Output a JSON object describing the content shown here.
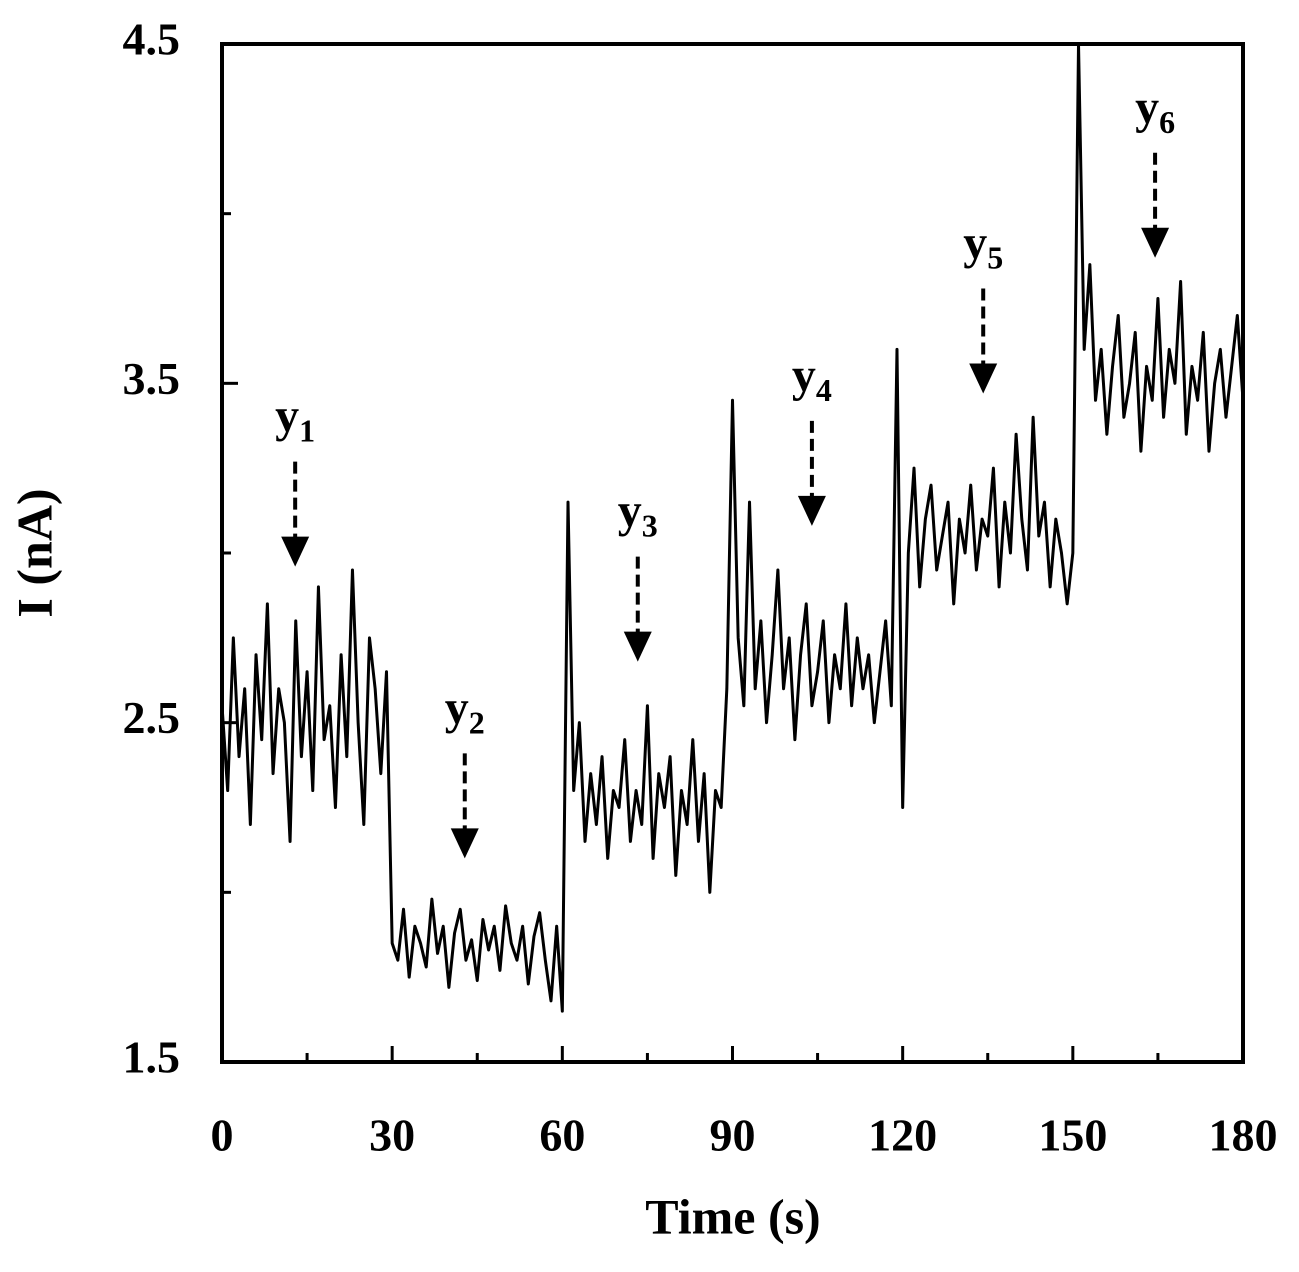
{
  "chart_data": {
    "type": "line",
    "xlabel": "Time (s)",
    "ylabel": "I (nA)",
    "xlim": [
      0,
      180
    ],
    "xticks": [
      0,
      30,
      60,
      90,
      120,
      150,
      180
    ],
    "xminorticks": [
      15,
      45,
      75,
      105,
      135,
      165
    ],
    "ylim": [
      1.5,
      4.5
    ],
    "yticks": [
      1.5,
      2.5,
      3.5,
      4.5
    ],
    "yminorticks": [
      2,
      3,
      4
    ],
    "color": "#000000",
    "x": [
      0,
      1,
      2,
      3,
      4,
      5,
      6,
      7,
      8,
      9,
      10,
      11,
      12,
      13,
      14,
      15,
      16,
      17,
      18,
      19,
      20,
      21,
      22,
      23,
      24,
      25,
      26,
      27,
      28,
      29,
      30,
      31,
      32,
      33,
      34,
      35,
      36,
      37,
      38,
      39,
      40,
      41,
      42,
      43,
      44,
      45,
      46,
      47,
      48,
      49,
      50,
      51,
      52,
      53,
      54,
      55,
      56,
      57,
      58,
      59,
      60,
      61,
      62,
      63,
      64,
      65,
      66,
      67,
      68,
      69,
      70,
      71,
      72,
      73,
      74,
      75,
      76,
      77,
      78,
      79,
      80,
      81,
      82,
      83,
      84,
      85,
      86,
      87,
      88,
      89,
      90,
      91,
      92,
      93,
      94,
      95,
      96,
      97,
      98,
      99,
      100,
      101,
      102,
      103,
      104,
      105,
      106,
      107,
      108,
      109,
      110,
      111,
      112,
      113,
      114,
      115,
      116,
      117,
      118,
      119,
      120,
      121,
      122,
      123,
      124,
      125,
      126,
      127,
      128,
      129,
      130,
      131,
      132,
      133,
      134,
      135,
      136,
      137,
      138,
      139,
      140,
      141,
      142,
      143,
      144,
      145,
      146,
      147,
      148,
      149,
      150,
      151,
      152,
      153,
      154,
      155,
      156,
      157,
      158,
      159,
      160,
      161,
      162,
      163,
      164,
      165,
      166,
      167,
      168,
      169,
      170,
      171,
      172,
      173,
      174,
      175,
      176,
      177,
      178,
      179,
      180
    ],
    "values": [
      2.55,
      2.3,
      2.75,
      2.4,
      2.6,
      2.2,
      2.7,
      2.45,
      2.85,
      2.35,
      2.6,
      2.5,
      2.15,
      2.8,
      2.4,
      2.65,
      2.3,
      2.9,
      2.45,
      2.55,
      2.25,
      2.7,
      2.4,
      2.95,
      2.5,
      2.2,
      2.75,
      2.6,
      2.35,
      2.65,
      1.85,
      1.8,
      1.95,
      1.75,
      1.9,
      1.85,
      1.78,
      1.98,
      1.82,
      1.9,
      1.72,
      1.88,
      1.95,
      1.8,
      1.86,
      1.74,
      1.92,
      1.83,
      1.9,
      1.77,
      1.96,
      1.85,
      1.8,
      1.9,
      1.73,
      1.87,
      1.94,
      1.8,
      1.68,
      1.9,
      1.65,
      3.15,
      2.3,
      2.5,
      2.15,
      2.35,
      2.2,
      2.4,
      2.1,
      2.3,
      2.25,
      2.45,
      2.15,
      2.3,
      2.2,
      2.55,
      2.1,
      2.35,
      2.25,
      2.4,
      2.05,
      2.3,
      2.2,
      2.45,
      2.15,
      2.35,
      2.0,
      2.3,
      2.25,
      2.6,
      3.45,
      2.75,
      2.55,
      3.15,
      2.6,
      2.8,
      2.5,
      2.7,
      2.95,
      2.6,
      2.75,
      2.45,
      2.7,
      2.85,
      2.55,
      2.65,
      2.8,
      2.5,
      2.7,
      2.6,
      2.85,
      2.55,
      2.75,
      2.6,
      2.7,
      2.5,
      2.65,
      2.8,
      2.55,
      3.6,
      2.25,
      3.0,
      3.25,
      2.9,
      3.1,
      3.2,
      2.95,
      3.05,
      3.15,
      2.85,
      3.1,
      3.0,
      3.2,
      2.95,
      3.1,
      3.05,
      3.25,
      2.9,
      3.15,
      3.0,
      3.35,
      3.1,
      2.95,
      3.4,
      3.05,
      3.15,
      2.9,
      3.1,
      3.0,
      2.85,
      3.0,
      4.5,
      3.6,
      3.85,
      3.45,
      3.6,
      3.35,
      3.55,
      3.7,
      3.4,
      3.5,
      3.65,
      3.3,
      3.55,
      3.45,
      3.75,
      3.4,
      3.6,
      3.5,
      3.8,
      3.35,
      3.55,
      3.45,
      3.65,
      3.3,
      3.5,
      3.6,
      3.4,
      3.55,
      3.7,
      3.45
    ],
    "annotations": [
      {
        "text": "y",
        "sub": "1",
        "x": 12.9,
        "y": 2.96
      },
      {
        "text": "y",
        "sub": "2",
        "x": 42.8,
        "y": 2.1
      },
      {
        "text": "y",
        "sub": "3",
        "x": 73.3,
        "y": 2.68
      },
      {
        "text": "y",
        "sub": "4",
        "x": 104,
        "y": 3.08
      },
      {
        "text": "y",
        "sub": "5",
        "x": 134.2,
        "y": 3.47
      },
      {
        "text": "y",
        "sub": "6",
        "x": 164.5,
        "y": 3.87
      }
    ]
  }
}
